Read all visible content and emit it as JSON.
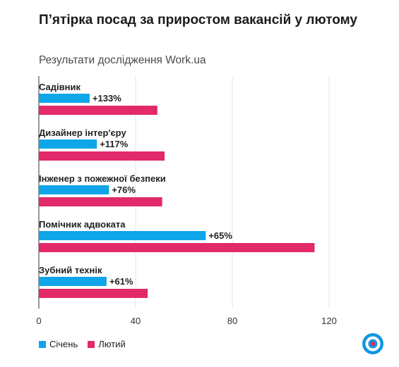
{
  "header": {
    "title": "П’ятірка посад за приростом вакансій у лютому",
    "subtitle": "Результати дослідження Work.ua"
  },
  "colors": {
    "january": "#0ea5e9",
    "february": "#e2296a",
    "grid": "#e4e4e4",
    "axis": "#333333"
  },
  "chart_data": {
    "type": "bar",
    "orientation": "horizontal",
    "categories": [
      "Садівник",
      "Дизайнер інтер'єру",
      "Інженер з пожежної безпеки",
      "Помічник адвоката",
      "Зубний технік"
    ],
    "series": [
      {
        "name": "Січень",
        "values": [
          21,
          24,
          29,
          69,
          28
        ]
      },
      {
        "name": "Лютий",
        "values": [
          49,
          52,
          51,
          114,
          45
        ]
      }
    ],
    "data_labels": [
      "+133%",
      "+117%",
      "+76%",
      "+65%",
      "+61%"
    ],
    "xticks": [
      0,
      40,
      80,
      120
    ],
    "xlim": [
      0,
      120
    ],
    "grid": true,
    "legend_position": "bottom-left"
  },
  "legend": {
    "items": [
      "Січень",
      "Лютий"
    ]
  },
  "logo": {
    "icon": "work-ua-logo-icon"
  }
}
